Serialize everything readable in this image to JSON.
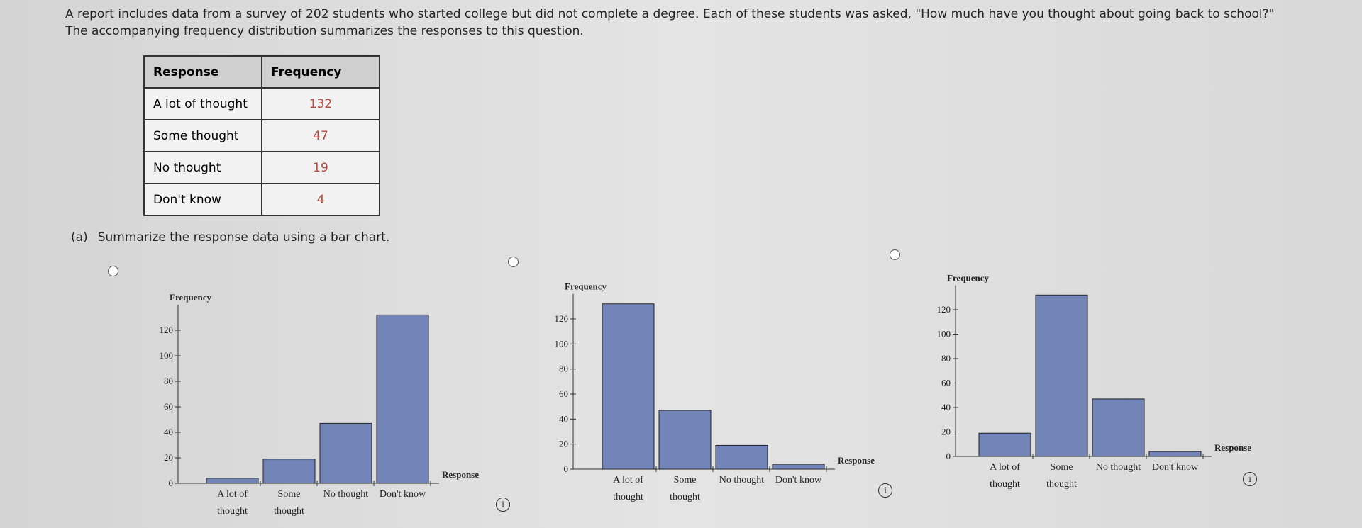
{
  "question": {
    "text": "A report includes data from a survey of 202 students who started college but did not complete a degree. Each of these students was asked, \"How much have you thought about going back to school?\" The accompanying frequency distribution summarizes the responses to this question."
  },
  "table": {
    "header": [
      "Response",
      "Frequency"
    ],
    "rows": [
      [
        "A lot of thought",
        132
      ],
      [
        "Some thought",
        47
      ],
      [
        "No thought",
        19
      ],
      [
        "Don't know",
        4
      ]
    ]
  },
  "part_a": {
    "label": "(a)",
    "text": "Summarize the response data using a bar chart."
  },
  "chart_data": [
    {
      "type": "bar",
      "y_label": "Frequency",
      "x_label": "Response",
      "color": "#7284b8",
      "categories": [
        "A lot of thought",
        "Some thought",
        "No thought",
        "Don't know"
      ],
      "values": [
        4,
        19,
        47,
        132
      ],
      "ylim": [
        0,
        140
      ],
      "yticks": [
        0,
        20,
        40,
        60,
        80,
        100,
        120
      ]
    },
    {
      "type": "bar",
      "y_label": "Frequency",
      "x_label": "Response",
      "color": "#7284b8",
      "categories": [
        "A lot of thought",
        "Some thought",
        "No thought",
        "Don't know"
      ],
      "values": [
        132,
        47,
        19,
        4
      ],
      "ylim": [
        0,
        140
      ],
      "yticks": [
        0,
        20,
        40,
        60,
        80,
        100,
        120
      ]
    },
    {
      "type": "bar",
      "y_label": "Frequency",
      "x_label": "Response",
      "color": "#7284b8",
      "categories": [
        "A lot of thought",
        "Some thought",
        "No thought",
        "Don't know"
      ],
      "values": [
        19,
        132,
        47,
        4
      ],
      "ylim": [
        0,
        140
      ],
      "yticks": [
        0,
        20,
        40,
        60,
        80,
        100,
        120
      ]
    }
  ]
}
